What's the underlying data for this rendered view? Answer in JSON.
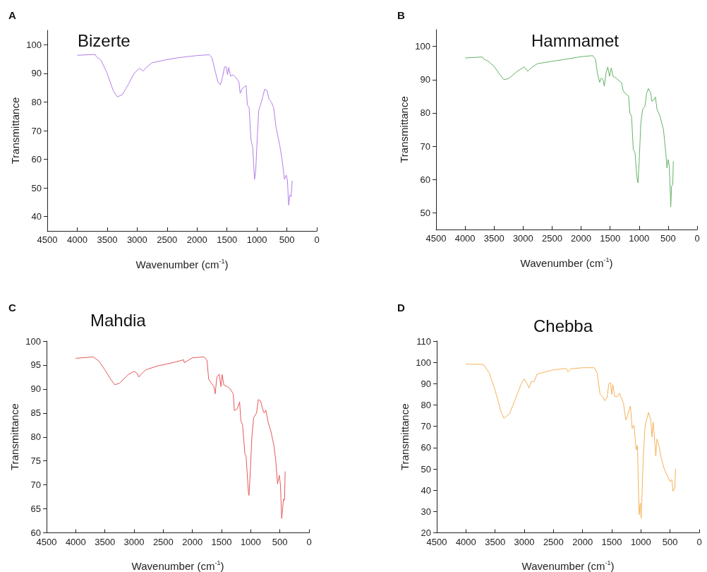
{
  "chart_data": [
    {
      "type": "line",
      "title": "Bizerte",
      "annotations": [
        "A"
      ],
      "xlabel": "Wavenumber (cm$^{-1}$)",
      "ylabel": "Transmittance",
      "color": "#b27ee8",
      "xlim": [
        4500,
        0
      ],
      "xticks": [
        4500,
        4000,
        3500,
        3000,
        2500,
        2000,
        1500,
        1000,
        500,
        0
      ],
      "ylim": [
        35,
        105
      ],
      "yticks": [
        40,
        50,
        60,
        70,
        80,
        90,
        100
      ],
      "x": [
        4000,
        3700,
        3680,
        3600,
        3500,
        3400,
        3330,
        3250,
        3150,
        3050,
        2960,
        2900,
        2850,
        2750,
        2500,
        2300,
        2000,
        1800,
        1750,
        1700,
        1650,
        1610,
        1570,
        1540,
        1510,
        1490,
        1470,
        1440,
        1400,
        1350,
        1300,
        1280,
        1250,
        1200,
        1180,
        1160,
        1130,
        1100,
        1070,
        1040,
        1020,
        1000,
        970,
        940,
        900,
        870,
        830,
        800,
        760,
        720,
        680,
        620,
        580,
        540,
        510,
        490,
        470,
        450,
        430,
        410
      ],
      "values": [
        96.3,
        96.6,
        95.8,
        94.5,
        90,
        84,
        81.8,
        82.5,
        86,
        90,
        91.8,
        90.8,
        92,
        93.7,
        94.8,
        95.5,
        96.2,
        96.5,
        95.5,
        91,
        87,
        86,
        89,
        92.3,
        92.2,
        89.5,
        92,
        89,
        89.5,
        88.5,
        87,
        83,
        84.5,
        85.5,
        85.8,
        79,
        78,
        67,
        64,
        53,
        56,
        65,
        77,
        79,
        82,
        84.5,
        84,
        81,
        80,
        78,
        71,
        65,
        60,
        53,
        54.5,
        52.5,
        44,
        47.5,
        47,
        52.5
      ]
    },
    {
      "type": "line",
      "title": "Hammamet",
      "annotations": [
        "B"
      ],
      "xlabel": "Wavenumber (cm$^{-1}$)",
      "ylabel": "Transmittance",
      "color": "#66b266",
      "xlim": [
        4500,
        0
      ],
      "xticks": [
        4500,
        4000,
        3500,
        3000,
        2500,
        2000,
        1500,
        1000,
        500,
        0
      ],
      "ylim": [
        45,
        105
      ],
      "yticks": [
        50,
        60,
        70,
        80,
        90,
        100
      ],
      "x": [
        4000,
        3700,
        3680,
        3600,
        3500,
        3400,
        3330,
        3250,
        3100,
        2980,
        2920,
        2850,
        2750,
        2500,
        2200,
        2000,
        1800,
        1750,
        1720,
        1680,
        1650,
        1620,
        1600,
        1570,
        1540,
        1510,
        1480,
        1450,
        1400,
        1300,
        1280,
        1250,
        1200,
        1180,
        1160,
        1130,
        1100,
        1070,
        1040,
        1020,
        1000,
        970,
        940,
        900,
        870,
        840,
        800,
        780,
        740,
        720,
        690,
        640,
        580,
        540,
        520,
        500,
        480,
        460,
        455,
        440,
        420,
        410
      ],
      "values": [
        96.5,
        96.8,
        96.2,
        95.5,
        94,
        91.5,
        90,
        90.3,
        92.5,
        93.8,
        92.5,
        93.7,
        94.8,
        95.5,
        96.3,
        96.9,
        97.2,
        96,
        92,
        89.2,
        90.5,
        90,
        88,
        92,
        93.8,
        91,
        93.5,
        91,
        90.5,
        89,
        87,
        86,
        85.3,
        85,
        80,
        79,
        69,
        68,
        61,
        59,
        65,
        77,
        81,
        82,
        86,
        87.3,
        86,
        83.5,
        84,
        84.8,
        81,
        79,
        75,
        68,
        63.5,
        66,
        64,
        55,
        51.8,
        58,
        58.5,
        65.5
      ]
    },
    {
      "type": "line",
      "title": "Mahdia",
      "annotations": [
        "C"
      ],
      "xlabel": "Wavenumber (cm$^{-1}$)",
      "ylabel": "Transmittance",
      "color": "#e8585a",
      "xlim": [
        4500,
        0
      ],
      "xticks": [
        4500,
        4000,
        3500,
        3000,
        2500,
        2000,
        1500,
        1000,
        500,
        0
      ],
      "ylim": [
        60,
        100
      ],
      "yticks": [
        60,
        65,
        70,
        75,
        80,
        85,
        90,
        95,
        100
      ],
      "x": [
        4000,
        3700,
        3600,
        3500,
        3400,
        3330,
        3250,
        3100,
        3000,
        2950,
        2920,
        2860,
        2800,
        2600,
        2300,
        2150,
        2140,
        2000,
        1800,
        1750,
        1720,
        1680,
        1630,
        1610,
        1580,
        1540,
        1510,
        1490,
        1460,
        1400,
        1350,
        1300,
        1280,
        1230,
        1190,
        1170,
        1140,
        1100,
        1080,
        1040,
        1030,
        1010,
        980,
        950,
        900,
        870,
        830,
        800,
        770,
        740,
        700,
        650,
        600,
        570,
        540,
        510,
        490,
        470,
        460,
        440,
        420,
        410
      ],
      "values": [
        96.4,
        96.7,
        95.8,
        94,
        92,
        90.9,
        91.2,
        93,
        93.7,
        93.3,
        92.5,
        93.3,
        94,
        94.8,
        95.6,
        96.1,
        95.5,
        96.5,
        96.7,
        96,
        92,
        91.3,
        90.5,
        89,
        92.5,
        93.1,
        90.5,
        93,
        90.8,
        90.5,
        90,
        89,
        85.5,
        85.9,
        87.3,
        83.5,
        82.5,
        76.5,
        76,
        68.5,
        67.8,
        72,
        80,
        84,
        85,
        87.8,
        87.5,
        86,
        85,
        85.6,
        83,
        81,
        78,
        75,
        70.2,
        72,
        70,
        63,
        64,
        67,
        66.8,
        72.8
      ]
    },
    {
      "type": "line",
      "title": "Chebba",
      "annotations": [
        "D"
      ],
      "xlabel": "Wavenumber (cm$^{-1}$)",
      "ylabel": "Transmittance",
      "color": "#f5b25a",
      "xlim": [
        4500,
        0
      ],
      "xticks": [
        4500,
        4000,
        3500,
        3000,
        2500,
        2000,
        1500,
        1000,
        500,
        0
      ],
      "ylim": [
        20,
        110
      ],
      "yticks": [
        20,
        30,
        40,
        50,
        60,
        70,
        80,
        90,
        100,
        110
      ],
      "x": [
        4000,
        3700,
        3600,
        3500,
        3400,
        3350,
        3250,
        3150,
        3050,
        3000,
        2950,
        2920,
        2880,
        2830,
        2780,
        2500,
        2280,
        2250,
        2200,
        2000,
        1800,
        1750,
        1700,
        1660,
        1620,
        1580,
        1550,
        1520,
        1500,
        1480,
        1450,
        1400,
        1370,
        1300,
        1260,
        1230,
        1200,
        1180,
        1150,
        1120,
        1080,
        1060,
        1030,
        1010,
        995,
        960,
        930,
        870,
        830,
        810,
        790,
        760,
        745,
        725,
        700,
        650,
        600,
        550,
        500,
        470,
        450,
        420,
        405
      ],
      "values": [
        99.2,
        99,
        95,
        87,
        77,
        73.8,
        76,
        83,
        90,
        92.3,
        90,
        88,
        91,
        91,
        94.5,
        96.5,
        97.2,
        95.5,
        97,
        97.5,
        97.5,
        95,
        85,
        84,
        82,
        83.5,
        90,
        90.5,
        85,
        89.5,
        84,
        84,
        85.5,
        81,
        73,
        75,
        78,
        79.5,
        69,
        70.5,
        59,
        61,
        28.5,
        34,
        26.8,
        55,
        70,
        76.5,
        73,
        65,
        72,
        62,
        56,
        64,
        62,
        55,
        50,
        47,
        44,
        45,
        39.5,
        41,
        50
      ]
    }
  ]
}
